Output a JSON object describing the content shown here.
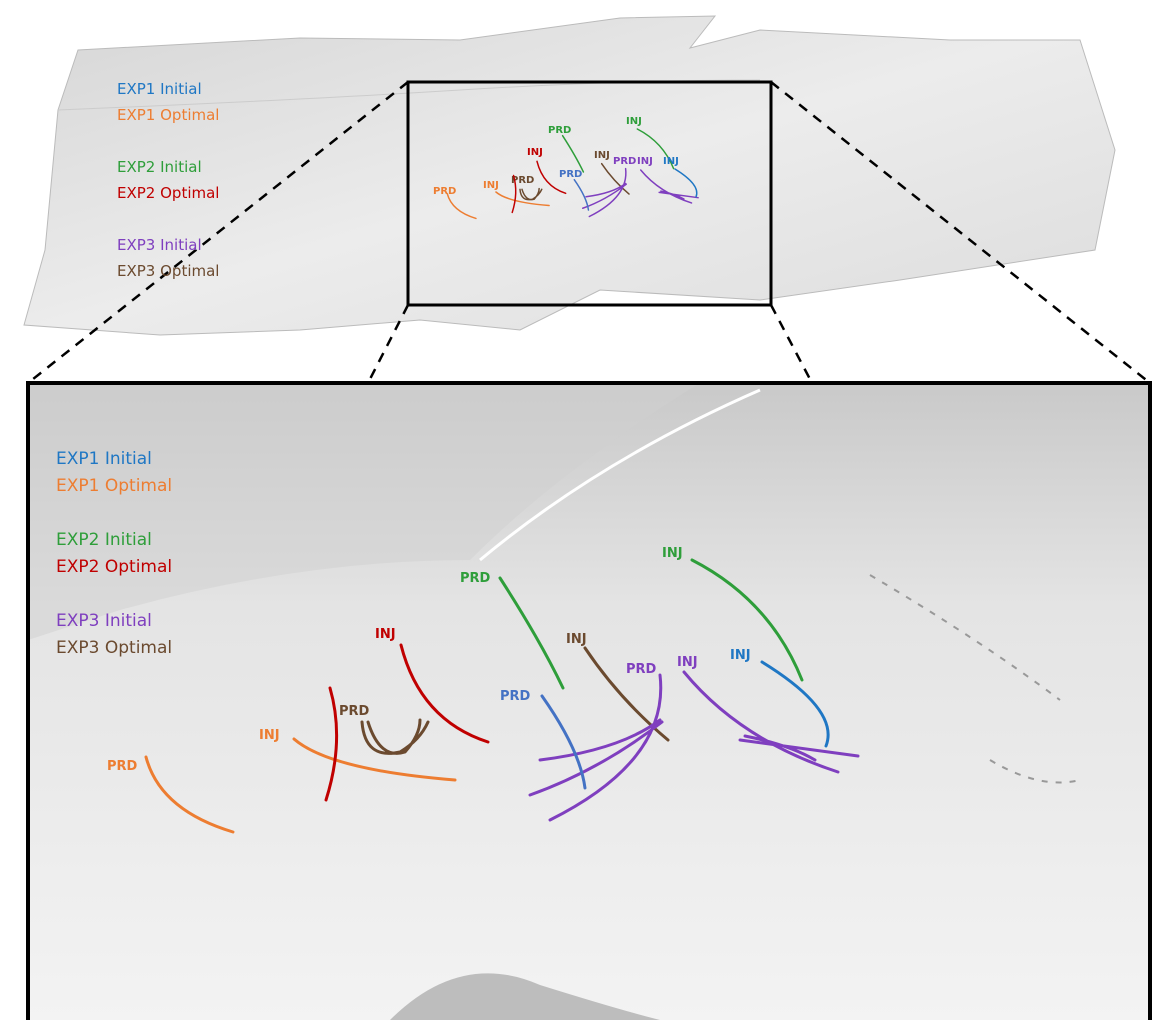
{
  "legend": [
    {
      "label": "EXP1 Initial",
      "color": "#1f77c4"
    },
    {
      "label": "EXP1 Optimal",
      "color": "#ed7d31"
    },
    {
      "label": "EXP2 Initial",
      "color": "#2e9e3a"
    },
    {
      "label": "EXP2 Optimal",
      "color": "#c00000"
    },
    {
      "label": "EXP3 Initial",
      "color": "#7f3fbf"
    },
    {
      "label": "EXP3 Optimal",
      "color": "#6b4a2f"
    }
  ],
  "wells": [
    {
      "label": "PRD",
      "color": "#ed7d31"
    },
    {
      "label": "INJ",
      "color": "#ed7d31"
    },
    {
      "label": "PRD",
      "color": "#6b4a2f"
    },
    {
      "label": "INJ",
      "color": "#c00000"
    },
    {
      "label": "PRD",
      "color": "#2e9e3a"
    },
    {
      "label": "INJ",
      "color": "#2e9e3a"
    },
    {
      "label": "INJ",
      "color": "#6b4a2f"
    },
    {
      "label": "PRD",
      "color": "#7f3fbf"
    },
    {
      "label": "INJ",
      "color": "#7f3fbf"
    },
    {
      "label": "INJ",
      "color": "#1f77c4"
    },
    {
      "label": "PRD",
      "color": "#4472c4"
    }
  ]
}
